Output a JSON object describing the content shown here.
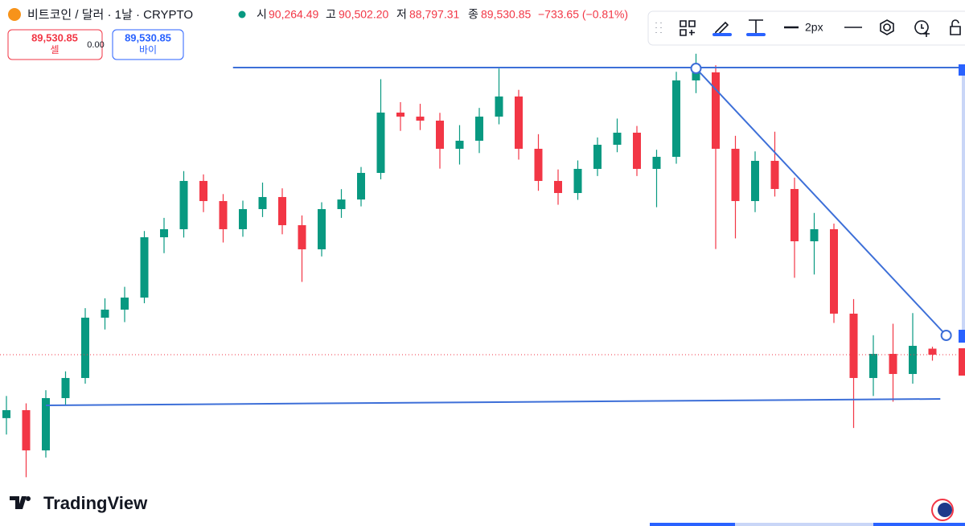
{
  "header": {
    "symbol": "비트코인 / 달러 · 1날 · CRYPTO",
    "open_label": "시",
    "open": "90,264.49",
    "high_label": "고",
    "high": "90,502.20",
    "low_label": "저",
    "low": "88,797.31",
    "close_label": "종",
    "close": "89,530.85",
    "change": "−733.65 (−0.81%)"
  },
  "trade": {
    "sell_price": "89,530.85",
    "sell_label": "셀",
    "spread": "0.00",
    "buy_price": "89,530.85",
    "buy_label": "바이"
  },
  "toolbar": {
    "width_label": "2px"
  },
  "brand": "TradingView",
  "chart_data": {
    "type": "candlestick",
    "ylim": [
      68656,
      132748
    ],
    "up_color": "#089981",
    "down_color": "#f23645",
    "line_color": "#3d6fd8",
    "candles": [
      [
        81800,
        84500,
        79800,
        82770
      ],
      [
        82770,
        83600,
        74600,
        77870
      ],
      [
        77870,
        85200,
        77000,
        84240
      ],
      [
        84240,
        87500,
        83300,
        86690
      ],
      [
        86690,
        95200,
        86000,
        94040
      ],
      [
        94040,
        96400,
        92600,
        95020
      ],
      [
        95020,
        97800,
        93500,
        96490
      ],
      [
        96490,
        104600,
        95800,
        103840
      ],
      [
        103840,
        106200,
        101900,
        104820
      ],
      [
        104820,
        111900,
        103800,
        110700
      ],
      [
        110700,
        111500,
        106900,
        108250
      ],
      [
        108250,
        109100,
        103200,
        104820
      ],
      [
        104820,
        108300,
        103900,
        107270
      ],
      [
        107270,
        110500,
        106300,
        108740
      ],
      [
        108740,
        109800,
        104200,
        105310
      ],
      [
        105310,
        106500,
        98400,
        102370
      ],
      [
        102370,
        108100,
        101500,
        107270
      ],
      [
        107270,
        109700,
        106200,
        108440
      ],
      [
        108440,
        112400,
        107600,
        111680
      ],
      [
        111680,
        123100,
        110900,
        119030
      ],
      [
        119030,
        120300,
        116800,
        118540
      ],
      [
        118540,
        120100,
        116900,
        118050
      ],
      [
        118050,
        119000,
        112200,
        114620
      ],
      [
        114620,
        117500,
        112700,
        115600
      ],
      [
        115600,
        119600,
        114100,
        118540
      ],
      [
        118540,
        124400,
        117600,
        120990
      ],
      [
        120990,
        121800,
        113300,
        114620
      ],
      [
        114620,
        116400,
        109500,
        110700
      ],
      [
        110700,
        112100,
        107800,
        109230
      ],
      [
        109230,
        113200,
        108400,
        112170
      ],
      [
        112170,
        116000,
        111300,
        115110
      ],
      [
        115110,
        118300,
        114200,
        116580
      ],
      [
        116580,
        117400,
        111300,
        112170
      ],
      [
        112170,
        114500,
        107500,
        113640
      ],
      [
        113640,
        124000,
        112800,
        122950
      ],
      [
        122950,
        126200,
        121400,
        123930
      ],
      [
        123930,
        124800,
        102400,
        114620
      ],
      [
        114620,
        116200,
        103700,
        108250
      ],
      [
        108250,
        114300,
        106900,
        113150
      ],
      [
        113150,
        116700,
        108800,
        109720
      ],
      [
        109720,
        111100,
        98900,
        103350
      ],
      [
        103350,
        106800,
        99300,
        104820
      ],
      [
        104820,
        105500,
        93400,
        94530
      ],
      [
        94530,
        96300,
        80600,
        86690
      ],
      [
        86690,
        91900,
        84500,
        89630
      ],
      [
        89630,
        93300,
        83800,
        87180
      ],
      [
        87180,
        94600,
        86000,
        90610
      ],
      [
        90264.49,
        90502.2,
        88797.31,
        89530.85
      ]
    ],
    "lines": [
      {
        "x": [
          11.5,
          48.7
        ],
        "y": [
          124516,
          124516
        ]
      },
      {
        "x": [
          2,
          47.4
        ],
        "y": [
          83356,
          84140
        ]
      },
      {
        "x": [
          35,
          47.7
        ],
        "y": [
          124418,
          91882
        ]
      }
    ]
  }
}
